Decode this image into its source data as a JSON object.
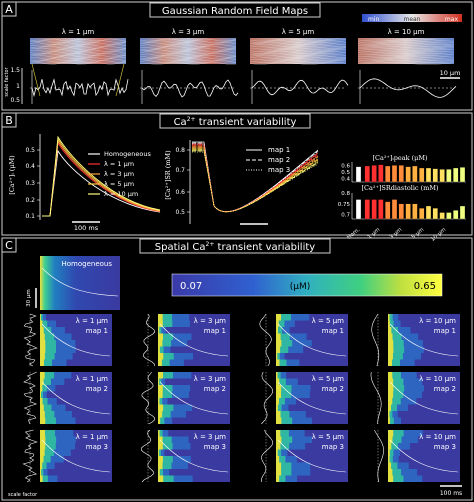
{
  "panelA": {
    "letter": "A",
    "title": "Gaussian Random Field Maps",
    "maps": [
      {
        "label": "λ = 1 μm"
      },
      {
        "label": "λ = 3 μm"
      },
      {
        "label": "λ = 5 μm"
      },
      {
        "label": "λ = 10 μm"
      }
    ],
    "colorbar": {
      "min": "min",
      "mean": "mean",
      "max": "max"
    },
    "scalebar": "10 μm",
    "ylabel": "scale factor",
    "yticks": [
      "1.5",
      "1",
      "0.5"
    ]
  },
  "panelB": {
    "letter": "B",
    "title_main": "Ca",
    "title_sup": "2+",
    "title_rest": " transient variability",
    "left": {
      "ylabel": "[Ca²⁺]ᵢ (μM)",
      "yticks": [
        "0.5",
        "0.4",
        "0.3",
        "0.2",
        "0.1"
      ],
      "scalebar": "100 ms",
      "legend": [
        "Homogeneous",
        "λ = 1 μm",
        "λ = 3 μm",
        "λ = 5 μm",
        "λ = 10 μm"
      ],
      "colors": [
        "#ffffff",
        "#ff3030",
        "#ffa040",
        "#ffd040",
        "#ffff80"
      ]
    },
    "middle": {
      "ylabel": "[Ca²⁺]SR (mM)",
      "yticks": [
        "0.8",
        "0.7",
        "0.6",
        "0.5"
      ],
      "legend": [
        "map 1",
        "map 2",
        "map 3"
      ]
    },
    "right": {
      "top_title": "[Ca²⁺]ᵢpeak (μM)",
      "top_yticks": [
        "0.6",
        "0.5",
        "0.4"
      ],
      "top_values": [
        0.59,
        0.6,
        0.61,
        0.59,
        0.6,
        0.6,
        0.58,
        0.59,
        0.56,
        0.56,
        0.55,
        0.54,
        0.54,
        0.56,
        0.57
      ],
      "bottom_title": "[Ca²⁺]SRdiastolic (mM)",
      "bottom_yticks": [
        "0.8",
        "0.75",
        "0.7"
      ],
      "bottom_values": [
        0.77,
        0.77,
        0.77,
        0.76,
        0.77,
        0.75,
        0.75,
        0.75,
        0.73,
        0.74,
        0.73,
        0.71,
        0.71,
        0.72,
        0.74
      ],
      "categories": [
        "Hom.",
        "1 μm",
        "3 μm",
        "5 μm",
        "10 μm"
      ]
    }
  },
  "panelC": {
    "letter": "C",
    "title_main": "Spatial Ca",
    "title_sup": "2+",
    "title_rest": " transient variability",
    "homogeneous_label": "Homogeneous",
    "scalebar_v": "30 μm",
    "colorbar": {
      "min": "0.07",
      "unit": "(μM)",
      "max": "0.65"
    },
    "time_scalebar": "100 ms",
    "scale_factor_label": "scale factor",
    "rows": [
      {
        "map": "map 1"
      },
      {
        "map": "map 2"
      },
      {
        "map": "map 3"
      }
    ],
    "columns": [
      {
        "label": "λ = 1 μm"
      },
      {
        "label": "λ = 3 μm"
      },
      {
        "label": "λ = 5 μm"
      },
      {
        "label": "λ = 10 μm"
      }
    ]
  },
  "colors": {
    "frame": "#cfcfcf",
    "heat_bg": "#3a3aa0",
    "accent_red": "#ff3030"
  }
}
